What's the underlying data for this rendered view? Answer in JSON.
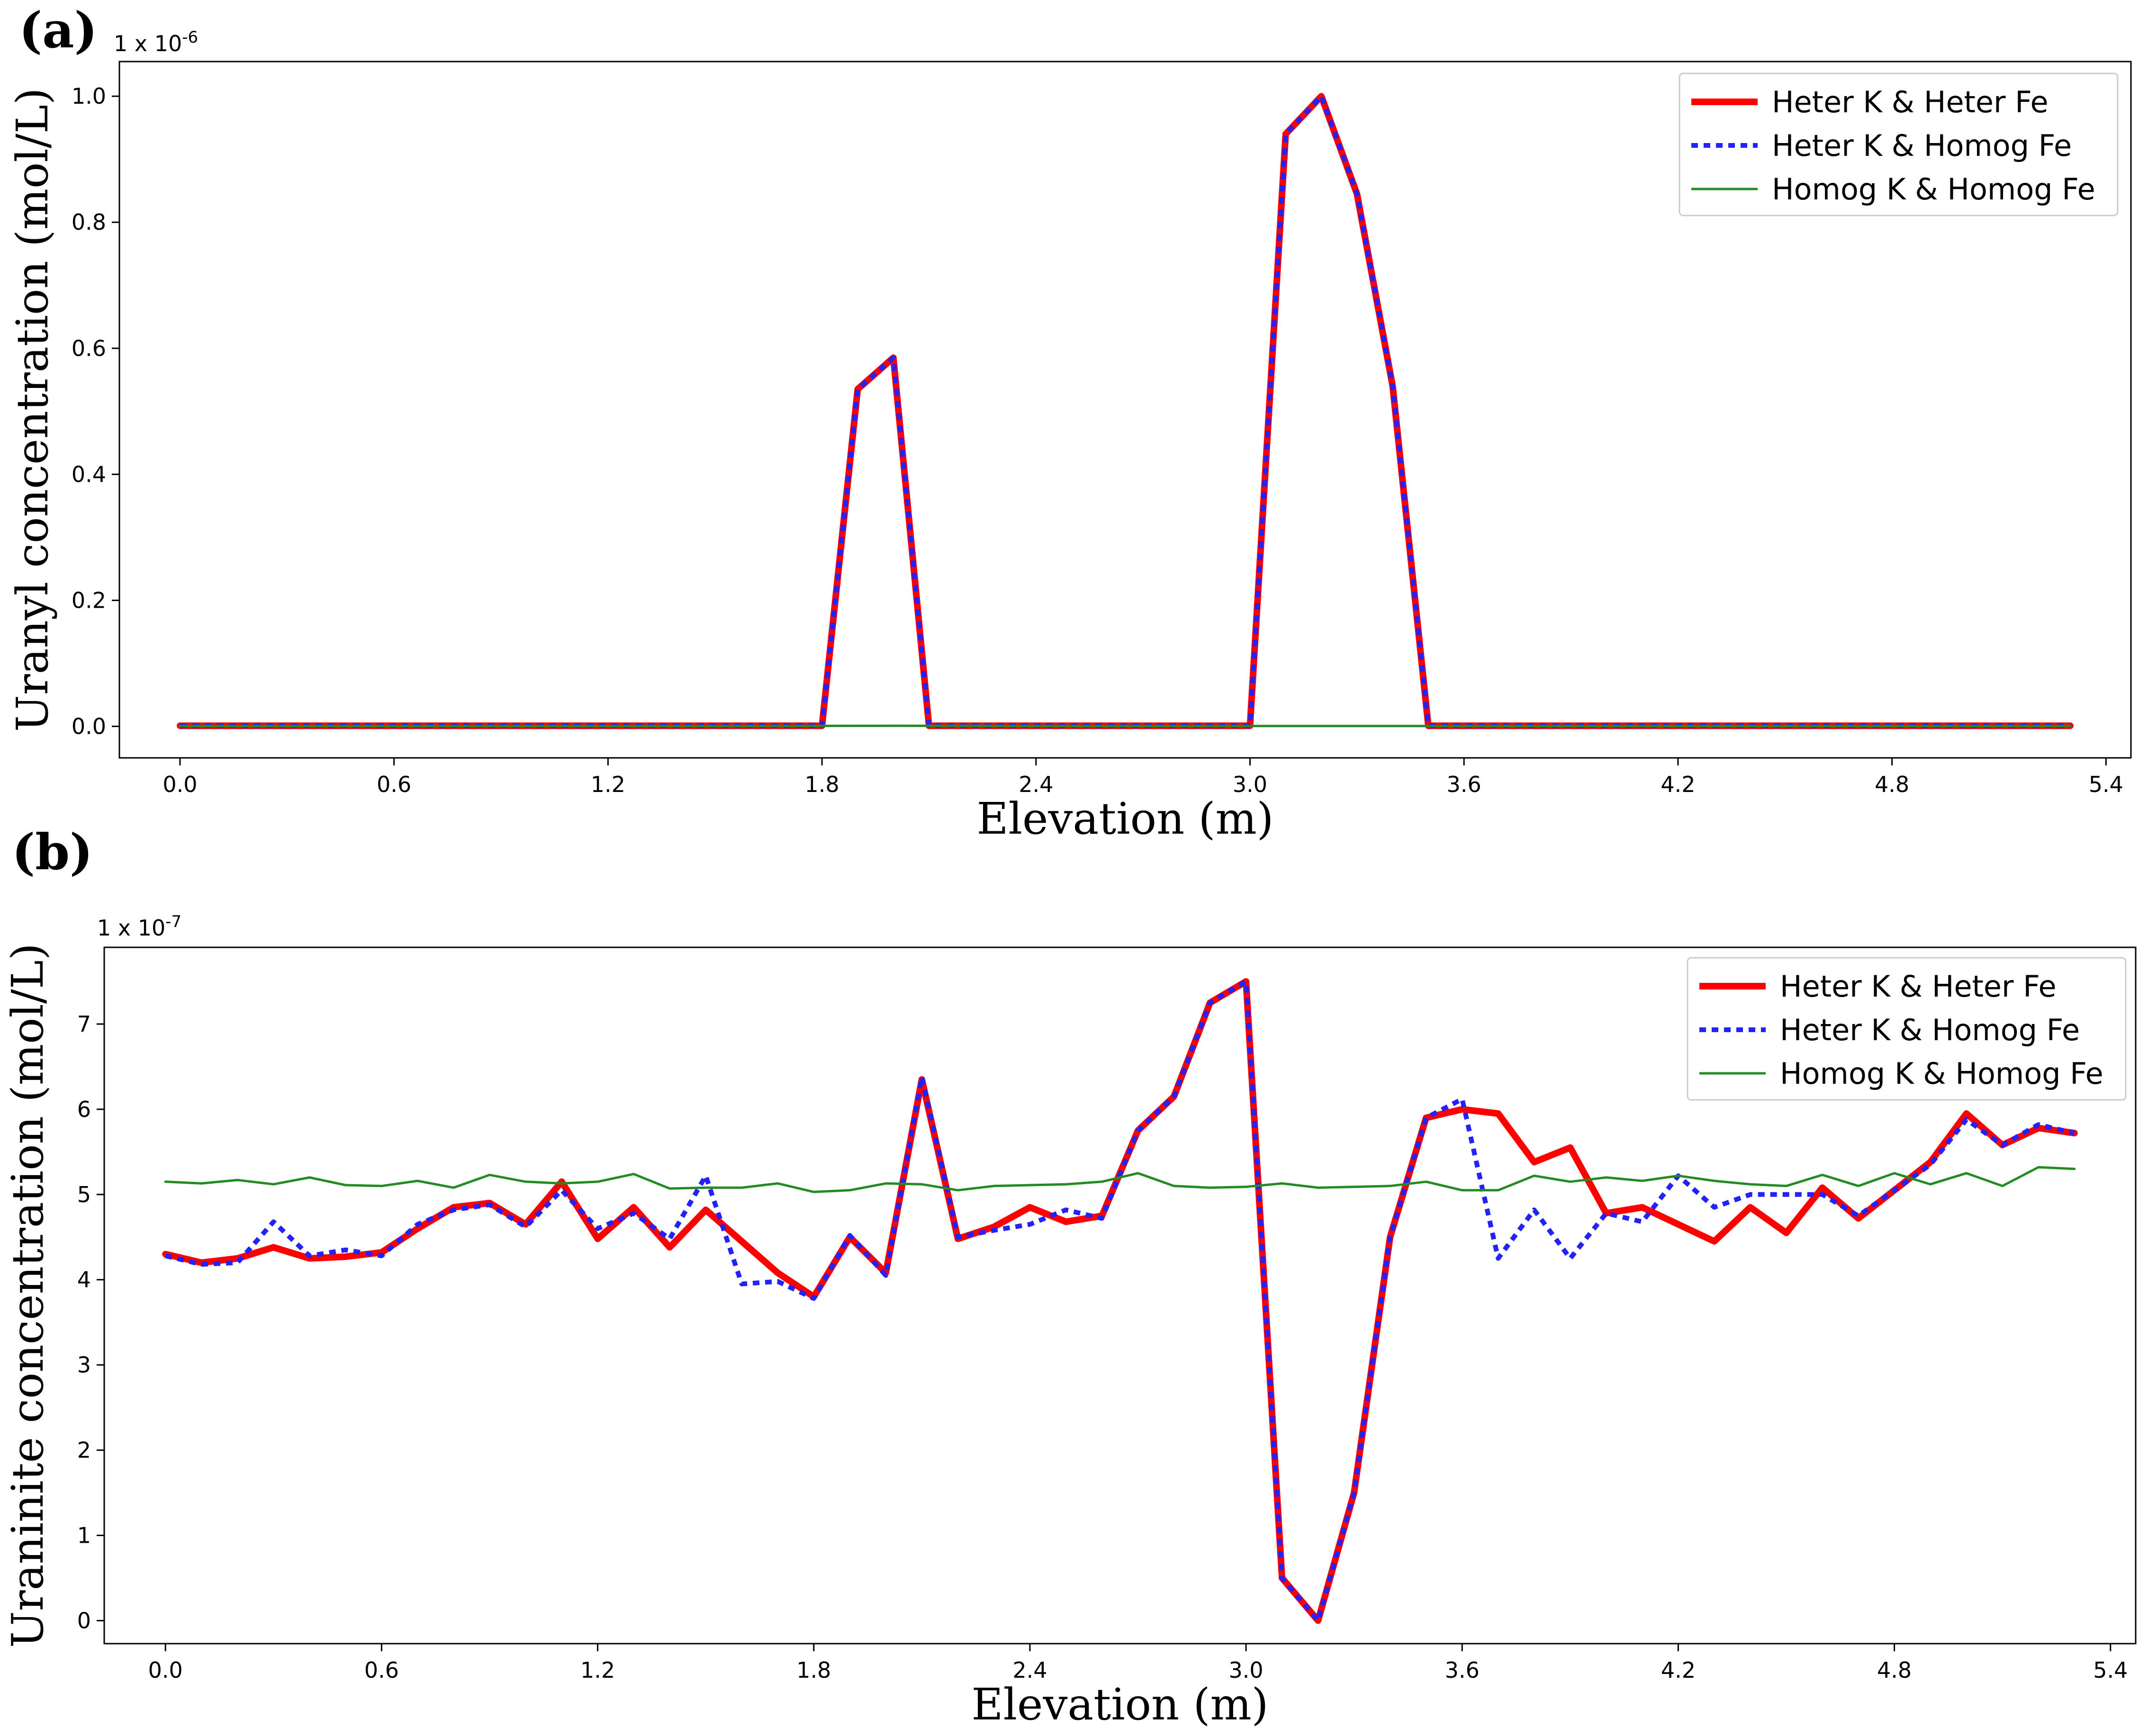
{
  "chart_data": [
    {
      "type": "line",
      "panel_label": "(a)",
      "xlabel": "Elevation (m)",
      "ylabel": "Uranyl  concentration (mol/L)",
      "y_multiplier": "1 x 10",
      "y_exponent": "-6",
      "xlim": [
        -0.17,
        5.47
      ],
      "ylim": [
        -0.05,
        1.055
      ],
      "xticks": [
        0.0,
        0.6,
        1.2,
        1.8,
        2.4,
        3.0,
        3.6,
        4.2,
        4.8,
        5.4
      ],
      "xtick_labels": [
        "0.0",
        "0.6",
        "1.2",
        "1.8",
        "2.4",
        "3.0",
        "3.6",
        "4.2",
        "4.8",
        "5.4"
      ],
      "yticks": [
        0.0,
        0.2,
        0.4,
        0.6,
        0.8,
        1.0
      ],
      "ytick_labels": [
        "0.0",
        "0.2",
        "0.4",
        "0.6",
        "0.8",
        "1.0"
      ],
      "legend_position": "top-right",
      "series": [
        {
          "name": "Heter K & Heter Fe",
          "color": "#ff0000",
          "style": "solid-thick",
          "x": [
            0.0,
            0.1,
            0.2,
            0.3,
            0.4,
            0.5,
            0.6,
            0.7,
            0.8,
            0.9,
            1.0,
            1.1,
            1.2,
            1.3,
            1.4,
            1.5,
            1.6,
            1.7,
            1.8,
            1.9,
            2.0,
            2.1,
            2.2,
            2.3,
            2.4,
            2.5,
            2.6,
            2.7,
            2.8,
            2.9,
            3.0,
            3.1,
            3.2,
            3.3,
            3.4,
            3.5,
            3.6,
            3.7,
            3.8,
            3.9,
            4.0,
            4.1,
            4.2,
            4.3,
            4.4,
            4.5,
            4.6,
            4.7,
            4.8,
            4.9,
            5.0,
            5.1,
            5.2,
            5.3
          ],
          "y": [
            0.001,
            0.001,
            0.001,
            0.001,
            0.001,
            0.001,
            0.001,
            0.001,
            0.001,
            0.001,
            0.001,
            0.001,
            0.001,
            0.001,
            0.001,
            0.001,
            0.001,
            0.001,
            0.001,
            0.535,
            0.585,
            0.001,
            0.001,
            0.001,
            0.001,
            0.001,
            0.001,
            0.001,
            0.001,
            0.001,
            0.001,
            0.94,
            1.0,
            0.845,
            0.54,
            0.001,
            0.001,
            0.001,
            0.001,
            0.001,
            0.001,
            0.001,
            0.001,
            0.001,
            0.001,
            0.001,
            0.001,
            0.001,
            0.001,
            0.001,
            0.001,
            0.001,
            0.001,
            0.001
          ]
        },
        {
          "name": "Heter K & Homog Fe",
          "color": "#2222ff",
          "style": "dotted",
          "x": [
            0.0,
            0.1,
            0.2,
            0.3,
            0.4,
            0.5,
            0.6,
            0.7,
            0.8,
            0.9,
            1.0,
            1.1,
            1.2,
            1.3,
            1.4,
            1.5,
            1.6,
            1.7,
            1.8,
            1.9,
            2.0,
            2.1,
            2.2,
            2.3,
            2.4,
            2.5,
            2.6,
            2.7,
            2.8,
            2.9,
            3.0,
            3.1,
            3.2,
            3.3,
            3.4,
            3.5,
            3.6,
            3.7,
            3.8,
            3.9,
            4.0,
            4.1,
            4.2,
            4.3,
            4.4,
            4.5,
            4.6,
            4.7,
            4.8,
            4.9,
            5.0,
            5.1,
            5.2,
            5.3
          ],
          "y": [
            0.001,
            0.001,
            0.001,
            0.001,
            0.001,
            0.001,
            0.001,
            0.001,
            0.001,
            0.001,
            0.001,
            0.001,
            0.001,
            0.001,
            0.001,
            0.001,
            0.001,
            0.001,
            0.001,
            0.535,
            0.585,
            0.001,
            0.001,
            0.001,
            0.001,
            0.001,
            0.001,
            0.001,
            0.001,
            0.001,
            0.001,
            0.94,
            1.0,
            0.845,
            0.54,
            0.001,
            0.001,
            0.001,
            0.001,
            0.001,
            0.001,
            0.001,
            0.001,
            0.001,
            0.001,
            0.001,
            0.001,
            0.001,
            0.001,
            0.001,
            0.001,
            0.001,
            0.001,
            0.001
          ]
        },
        {
          "name": "Homog K & Homog Fe",
          "color": "#228b22",
          "style": "solid-thin",
          "x": [
            0.0,
            0.5,
            1.0,
            1.5,
            2.0,
            2.5,
            3.0,
            3.5,
            4.0,
            4.5,
            5.0,
            5.3
          ],
          "y": [
            0.0005,
            0.0005,
            0.0005,
            0.0005,
            0.001,
            0.0005,
            0.0005,
            0.0005,
            0.0005,
            0.0005,
            0.0005,
            0.0005
          ]
        }
      ]
    },
    {
      "type": "line",
      "panel_label": "(b)",
      "xlabel": "Elevation (m)",
      "ylabel": "Uraninite  concentration (mol/L)",
      "y_multiplier": "1 x 10",
      "y_exponent": "-7",
      "xlim": [
        -0.17,
        5.47
      ],
      "ylim": [
        -0.27,
        7.9
      ],
      "xticks": [
        0.0,
        0.6,
        1.2,
        1.8,
        2.4,
        3.0,
        3.6,
        4.2,
        4.8,
        5.4
      ],
      "xtick_labels": [
        "0.0",
        "0.6",
        "1.2",
        "1.8",
        "2.4",
        "3.0",
        "3.6",
        "4.2",
        "4.8",
        "5.4"
      ],
      "yticks": [
        0,
        1,
        2,
        3,
        4,
        5,
        6,
        7
      ],
      "ytick_labels": [
        "0",
        "1",
        "2",
        "3",
        "4",
        "5",
        "6",
        "7"
      ],
      "legend_position": "top-right",
      "series": [
        {
          "name": "Heter K & Heter Fe",
          "color": "#ff0000",
          "style": "solid-thick",
          "x": [
            0.0,
            0.1,
            0.2,
            0.3,
            0.4,
            0.5,
            0.6,
            0.7,
            0.8,
            0.9,
            1.0,
            1.1,
            1.2,
            1.3,
            1.4,
            1.5,
            1.6,
            1.7,
            1.8,
            1.9,
            2.0,
            2.1,
            2.2,
            2.3,
            2.4,
            2.5,
            2.6,
            2.7,
            2.8,
            2.9,
            3.0,
            3.1,
            3.2,
            3.3,
            3.4,
            3.5,
            3.6,
            3.7,
            3.8,
            3.9,
            4.0,
            4.1,
            4.2,
            4.3,
            4.4,
            4.5,
            4.6,
            4.7,
            4.8,
            4.9,
            5.0,
            5.1,
            5.2,
            5.3
          ],
          "y": [
            4.3,
            4.2,
            4.25,
            4.38,
            4.25,
            4.27,
            4.32,
            4.6,
            4.85,
            4.9,
            4.65,
            5.15,
            4.48,
            4.85,
            4.38,
            4.82,
            4.45,
            4.08,
            3.8,
            4.5,
            4.08,
            6.35,
            4.48,
            4.62,
            4.85,
            4.68,
            4.75,
            5.75,
            6.15,
            7.25,
            7.5,
            0.5,
            0.0,
            1.5,
            4.5,
            5.9,
            6.0,
            5.95,
            5.38,
            5.55,
            4.78,
            4.85,
            4.65,
            4.45,
            4.85,
            4.55,
            5.08,
            4.72,
            5.05,
            5.38,
            5.95,
            5.58,
            5.78,
            5.72
          ]
        },
        {
          "name": "Heter K & Homog Fe",
          "color": "#2222ff",
          "style": "dotted",
          "x": [
            0.0,
            0.1,
            0.2,
            0.3,
            0.4,
            0.5,
            0.6,
            0.7,
            0.8,
            0.9,
            1.0,
            1.1,
            1.2,
            1.3,
            1.4,
            1.5,
            1.6,
            1.7,
            1.8,
            1.9,
            2.0,
            2.1,
            2.2,
            2.3,
            2.4,
            2.5,
            2.6,
            2.7,
            2.8,
            2.9,
            3.0,
            3.1,
            3.2,
            3.3,
            3.4,
            3.5,
            3.6,
            3.7,
            3.8,
            3.9,
            4.0,
            4.1,
            4.2,
            4.3,
            4.4,
            4.5,
            4.6,
            4.7,
            4.8,
            4.9,
            5.0,
            5.1,
            5.2,
            5.3
          ],
          "y": [
            4.28,
            4.18,
            4.2,
            4.68,
            4.28,
            4.35,
            4.28,
            4.65,
            4.82,
            4.88,
            4.62,
            5.05,
            4.6,
            4.78,
            4.48,
            5.22,
            3.95,
            3.98,
            3.78,
            4.52,
            4.05,
            6.38,
            4.5,
            4.58,
            4.65,
            4.82,
            4.72,
            5.75,
            6.15,
            7.25,
            7.5,
            0.5,
            0.0,
            1.5,
            4.5,
            5.9,
            6.12,
            4.25,
            4.82,
            4.25,
            4.78,
            4.68,
            5.22,
            4.85,
            5.0,
            5.0,
            5.0,
            4.75,
            5.05,
            5.35,
            5.88,
            5.58,
            5.82,
            5.72
          ]
        },
        {
          "name": "Homog K & Homog Fe",
          "color": "#228b22",
          "style": "solid-thin",
          "x": [
            0.0,
            0.1,
            0.2,
            0.3,
            0.4,
            0.5,
            0.6,
            0.7,
            0.8,
            0.9,
            1.0,
            1.1,
            1.2,
            1.3,
            1.4,
            1.5,
            1.6,
            1.7,
            1.8,
            1.9,
            2.0,
            2.1,
            2.2,
            2.3,
            2.4,
            2.5,
            2.6,
            2.7,
            2.8,
            2.9,
            3.0,
            3.1,
            3.2,
            3.3,
            3.4,
            3.5,
            3.6,
            3.7,
            3.8,
            3.9,
            4.0,
            4.1,
            4.2,
            4.3,
            4.4,
            4.5,
            4.6,
            4.7,
            4.8,
            4.9,
            5.0,
            5.1,
            5.2,
            5.3
          ],
          "y": [
            5.15,
            5.13,
            5.17,
            5.12,
            5.2,
            5.11,
            5.1,
            5.16,
            5.08,
            5.23,
            5.15,
            5.13,
            5.15,
            5.24,
            5.07,
            5.08,
            5.08,
            5.13,
            5.03,
            5.05,
            5.13,
            5.12,
            5.05,
            5.1,
            5.11,
            5.12,
            5.15,
            5.25,
            5.1,
            5.08,
            5.09,
            5.13,
            5.08,
            5.09,
            5.1,
            5.15,
            5.05,
            5.05,
            5.22,
            5.15,
            5.2,
            5.16,
            5.22,
            5.16,
            5.12,
            5.1,
            5.23,
            5.1,
            5.25,
            5.12,
            5.25,
            5.1,
            5.32,
            5.3
          ]
        }
      ]
    }
  ]
}
